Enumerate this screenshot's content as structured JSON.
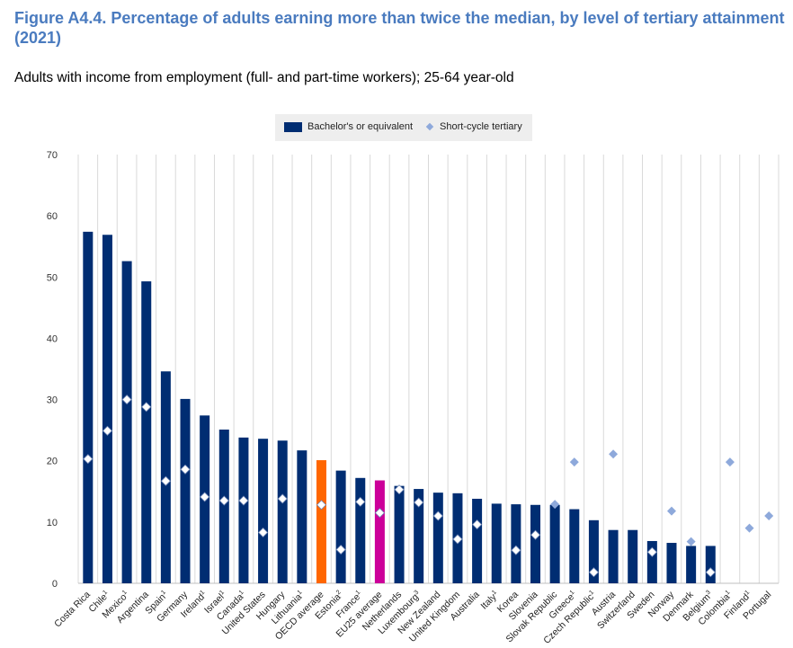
{
  "figure": {
    "title": "Figure A4.4. Percentage of adults earning more than twice the median, by level of tertiary attainment (2021)",
    "subtitle": "Adults with income from employment (full- and part-time workers); 25-64 year-old"
  },
  "legend": {
    "bachelor_label": "Bachelor's or equivalent",
    "short_cycle_label": "Short-cycle tertiary"
  },
  "colors": {
    "bachelor": "#002d72",
    "oecd_average": "#ff6600",
    "eu25_average": "#cc0099",
    "short_cycle_marker": "#8ea9db",
    "diamond_on_bar": "#ffffff"
  },
  "chart_data": {
    "type": "bar",
    "title": "",
    "xlabel": "",
    "ylabel": "",
    "ylim": [
      0,
      70
    ],
    "yticks": [
      0,
      10,
      20,
      30,
      40,
      50,
      60,
      70
    ],
    "grid": "vertical lines between categories",
    "legend_position": "top-center",
    "categories": [
      "Costa Rica",
      "Chile",
      "Mexico",
      "Argentina",
      "Spain",
      "Germany",
      "Ireland",
      "Israel",
      "Canada",
      "United States",
      "Hungary",
      "Lithuania",
      "OECD average",
      "Estonia",
      "France",
      "EU25 average",
      "Netherlands",
      "Luxembourg",
      "New Zealand",
      "United Kingdom",
      "Australia",
      "Italy",
      "Korea",
      "Slovenia",
      "Slovak Republic",
      "Greece",
      "Czech Republic",
      "Austria",
      "Switzerland",
      "Sweden",
      "Norway",
      "Denmark",
      "Belgium",
      "Colombia",
      "Finland",
      "Portugal"
    ],
    "category_superscripts": [
      "",
      "1",
      "1",
      "",
      "1",
      "",
      "1",
      "1",
      "1",
      "",
      "",
      "1",
      "",
      "2",
      "1",
      "",
      "",
      "3",
      "",
      "",
      "",
      "1",
      "",
      "",
      "",
      "1",
      "1",
      "",
      "",
      "",
      "",
      "",
      "3",
      "1",
      "1",
      ""
    ],
    "series": [
      {
        "name": "Bachelor's or equivalent",
        "values": [
          57.4,
          56.9,
          52.6,
          49.3,
          34.6,
          30.1,
          27.4,
          25.1,
          23.8,
          23.6,
          23.3,
          21.7,
          20.1,
          18.4,
          17.2,
          16.8,
          15.9,
          15.4,
          14.8,
          14.7,
          13.8,
          13.0,
          12.9,
          12.8,
          12.8,
          12.1,
          10.3,
          8.7,
          8.7,
          6.9,
          6.6,
          6.1,
          6.1,
          null,
          null,
          null
        ]
      },
      {
        "name": "Short-cycle tertiary",
        "values": [
          20.3,
          24.9,
          30.0,
          28.8,
          16.7,
          18.6,
          14.1,
          13.5,
          13.5,
          8.3,
          13.8,
          null,
          12.8,
          5.5,
          13.3,
          11.5,
          15.3,
          13.2,
          11.0,
          7.2,
          9.6,
          null,
          5.4,
          7.9,
          12.9,
          19.8,
          1.8,
          21.1,
          null,
          5.1,
          11.8,
          6.8,
          1.8,
          19.8,
          9.0,
          11.0
        ]
      }
    ]
  }
}
